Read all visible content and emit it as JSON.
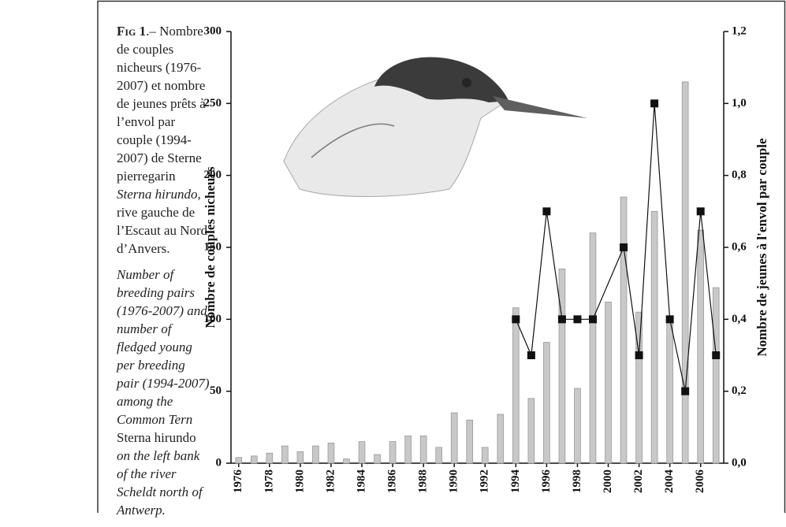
{
  "caption": {
    "label": "Fig 1",
    "french": ".– Nombre de couples nicheurs (1976-2007) et nombre de jeunes prêts à l’envol par couple (1994-2007) de Sterne pierregarin ",
    "french_species": "Sterna hirundo",
    "french_end": ", rive gauche de l’Escaut au Nord d’Anvers.",
    "english": "Number of breeding pairs (1976-2007) and number of fledged young per breeding pair (1994-2007) among the Common Tern ",
    "english_species": "Sterna hirundo",
    "english_end": " on the left bank of the river Scheldt north of Antwerp."
  },
  "chart_data": {
    "type": "bar-line",
    "ylabel": "Nombre de couples nicheurs",
    "y2label": "Nombre de jeunes à l'envol par couple",
    "xlim": [
      1975.5,
      2007.5
    ],
    "xticks": [
      1976,
      1978,
      1980,
      1982,
      1984,
      1986,
      1988,
      1990,
      1992,
      1994,
      1996,
      1998,
      2000,
      2002,
      2004,
      2006
    ],
    "ylim": [
      0,
      300
    ],
    "yticks": [
      0,
      50,
      100,
      150,
      200,
      250,
      300
    ],
    "y2lim": [
      0,
      1.2
    ],
    "y2ticks": [
      {
        "value": 0,
        "label": "0,0"
      },
      {
        "value": 0.2,
        "label": "0,2"
      },
      {
        "value": 0.4,
        "label": "0,4"
      },
      {
        "value": 0.6,
        "label": "0,6"
      },
      {
        "value": 0.8,
        "label": "0,8"
      },
      {
        "value": 1.0,
        "label": "1,0"
      },
      {
        "value": 1.2,
        "label": "1,2"
      }
    ],
    "series": [
      {
        "type": "bar",
        "color": "#c8c8c8",
        "x": [
          1976,
          1977,
          1978,
          1979,
          1980,
          1981,
          1982,
          1983,
          1984,
          1985,
          1986,
          1987,
          1988,
          1989,
          1990,
          1991,
          1992,
          1993,
          1994,
          1995,
          1996,
          1997,
          1998,
          1999,
          2000,
          2001,
          2002,
          2003,
          2004,
          2005,
          2006,
          2007
        ],
        "values": [
          4,
          5,
          7,
          12,
          8,
          12,
          14,
          3,
          15,
          6,
          15,
          19,
          19,
          11,
          35,
          30,
          11,
          34,
          108,
          45,
          84,
          135,
          52,
          160,
          112,
          185,
          105,
          175,
          100,
          265,
          162,
          122
        ]
      },
      {
        "type": "line",
        "axis": "y2",
        "color": "#111111",
        "x": [
          1994,
          1995,
          1996,
          1997,
          1998,
          1999,
          2001,
          2002,
          2003,
          2004,
          2005,
          2006,
          2007
        ],
        "values": [
          0.4,
          0.3,
          0.7,
          0.4,
          0.4,
          0.4,
          0.6,
          0.3,
          1.0,
          0.4,
          0.2,
          0.7,
          0.3
        ]
      }
    ]
  }
}
